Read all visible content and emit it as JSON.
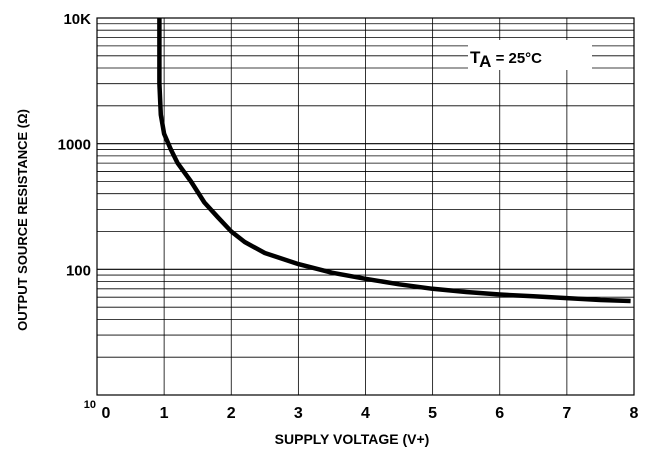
{
  "chart_data": {
    "type": "line",
    "xlabel": "SUPPLY VOLTAGE (V+)",
    "ylabel": "OUTPUT SOURCE RESISTANCE (Ω)",
    "x_ticks": [
      "0",
      "1",
      "2",
      "3",
      "4",
      "5",
      "6",
      "7",
      "8"
    ],
    "y_ticks": [
      "10",
      "100",
      "1000",
      "10K"
    ],
    "xlim": [
      0,
      8
    ],
    "ylim": [
      10,
      10000
    ],
    "y_scale": "log",
    "grid": true,
    "annotation": {
      "label_main": "T",
      "label_sub": "A",
      "label_rest": " = 25°C"
    },
    "series": [
      {
        "color": "#000000",
        "points": [
          [
            0.93,
            10000
          ],
          [
            0.93,
            3000
          ],
          [
            0.95,
            1700
          ],
          [
            1.0,
            1200
          ],
          [
            1.1,
            900
          ],
          [
            1.2,
            700
          ],
          [
            1.4,
            500
          ],
          [
            1.6,
            340
          ],
          [
            1.8,
            260
          ],
          [
            2.0,
            200
          ],
          [
            2.2,
            165
          ],
          [
            2.5,
            135
          ],
          [
            3.0,
            110
          ],
          [
            3.5,
            94
          ],
          [
            4.0,
            84
          ],
          [
            4.5,
            76
          ],
          [
            5.0,
            70
          ],
          [
            5.5,
            66
          ],
          [
            6.0,
            63
          ],
          [
            6.5,
            61
          ],
          [
            7.0,
            59
          ],
          [
            7.5,
            57
          ],
          [
            7.95,
            56
          ]
        ]
      }
    ]
  }
}
